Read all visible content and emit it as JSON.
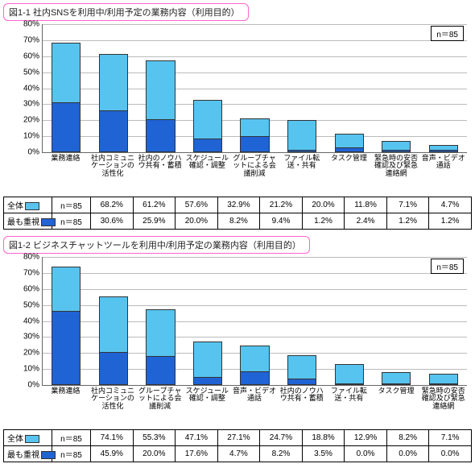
{
  "colors": {
    "top_series": "#56c4ef",
    "bottom_series": "#2063d4",
    "title_border": "#ff66cc",
    "grid": "#bbbbbb",
    "axis": "#666666",
    "text": "#222222"
  },
  "y_axis": {
    "min": 0,
    "max": 80,
    "step": 10,
    "suffix": "%"
  },
  "legend": {
    "row1_label": "全体",
    "row2_label": "最も重視",
    "n_label": "n＝85"
  },
  "chart_n_label": "n＝85",
  "panels": [
    {
      "title": "図1-1 社内SNSを利用中/利用予定の業務内容（利用目的）",
      "categories": [
        "業務連絡",
        "社内コミュニケーションの活性化",
        "社内のノウハウ共有・蓄積",
        "スケジュール確認・調整",
        "グループチャットによる会議削減",
        "ファイル転送・共有",
        "タスク管理",
        "緊急時の安否確認及び緊急連絡網",
        "音声・ビデオ通話"
      ],
      "total": [
        68.2,
        61.2,
        57.6,
        32.9,
        21.2,
        20.0,
        11.8,
        7.1,
        4.7
      ],
      "primary": [
        30.6,
        25.9,
        20.0,
        8.2,
        9.4,
        1.2,
        2.4,
        1.2,
        1.2
      ]
    },
    {
      "title": "図1-2 ビジネスチャットツールを利用中/利用予定の業務内容（利用目的）",
      "categories": [
        "業務連絡",
        "社内コミュニケーションの活性化",
        "グループチャットによる会議削減",
        "スケジュール確認・調整",
        "音声・ビデオ通話",
        "社内のノウハウ共有・蓄積",
        "ファイル転送・共有",
        "タスク管理",
        "緊急時の安否確認及び緊急連絡網"
      ],
      "total": [
        74.1,
        55.3,
        47.1,
        27.1,
        24.7,
        18.8,
        12.9,
        8.2,
        7.1
      ],
      "primary": [
        45.9,
        20.0,
        17.6,
        4.7,
        8.2,
        3.5,
        0.0,
        0.0,
        0.0
      ]
    }
  ]
}
